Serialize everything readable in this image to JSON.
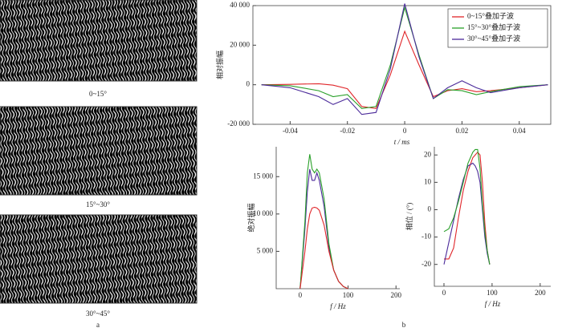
{
  "panels": [
    {
      "label": "0~15°"
    },
    {
      "label": "15°~30°"
    },
    {
      "label": "30°~45°"
    }
  ],
  "figure_labels": [
    "a",
    "b"
  ],
  "chart_data": [
    {
      "type": "line",
      "xlabel": "t / ms",
      "ylabel": "相对振幅",
      "x": [
        -0.05,
        -0.04,
        -0.03,
        -0.025,
        -0.02,
        -0.015,
        -0.01,
        -0.005,
        0,
        0.005,
        0.01,
        0.015,
        0.02,
        0.025,
        0.03,
        0.04,
        0.05
      ],
      "series": [
        {
          "name": "0~15°叠加子波",
          "color": "#e0262a",
          "values": [
            0,
            200,
            500,
            -200,
            -2000,
            -11000,
            -12000,
            5000,
            27000,
            10000,
            -6000,
            -3000,
            -2000,
            -3500,
            -3000,
            -1500,
            0
          ]
        },
        {
          "name": "15°~30°叠加子波",
          "color": "#2aa02a",
          "values": [
            0,
            -500,
            -3000,
            -6000,
            -5000,
            -12000,
            -11000,
            10000,
            39000,
            15000,
            -7000,
            -2500,
            -3000,
            -5000,
            -3500,
            -1000,
            0
          ]
        },
        {
          "name": "30°~45°叠加子波",
          "color": "#4b2a9a",
          "values": [
            0,
            -1500,
            -6000,
            -10000,
            -7000,
            -15000,
            -14000,
            8000,
            41000,
            14000,
            -7000,
            -1500,
            2000,
            -1500,
            -4000,
            -1500,
            0
          ]
        }
      ],
      "xlim": [
        -0.053,
        0.051
      ],
      "ylim": [
        -20000,
        40000
      ],
      "xticks": [
        -0.04,
        -0.02,
        0,
        0.02,
        0.04
      ],
      "yticks": [
        {
          "value": -20000,
          "label": "-20 000"
        },
        0,
        {
          "value": 20000,
          "label": "20 000"
        },
        {
          "value": 40000,
          "label": "40 000"
        }
      ],
      "legend": "upper right"
    },
    {
      "type": "line",
      "xlabel": "f / Hz",
      "ylabel": "绝对振幅",
      "x": [
        0,
        10,
        15,
        20,
        25,
        30,
        35,
        40,
        50,
        60,
        70,
        80,
        90,
        100
      ],
      "series": [
        {
          "color": "#4b2a9a",
          "values": [
            0,
            8000,
            13000,
            16000,
            14500,
            14500,
            15500,
            14500,
            11000,
            5500,
            2500,
            1000,
            300,
            0
          ]
        },
        {
          "color": "#2aa02a",
          "values": [
            0,
            9000,
            15500,
            18000,
            16000,
            15500,
            16000,
            15500,
            12000,
            6000,
            2500,
            1000,
            300,
            0
          ]
        },
        {
          "color": "#e0262a",
          "values": [
            0,
            5000,
            8000,
            10000,
            10800,
            10900,
            10800,
            10500,
            8500,
            5000,
            2500,
            1000,
            300,
            0
          ]
        }
      ],
      "xlim": [
        -50,
        208
      ],
      "ylim": [
        0,
        19000
      ],
      "xticks": [
        0,
        100,
        200
      ],
      "yticks": [
        {
          "value": 5000,
          "label": "5 000"
        },
        {
          "value": 10000,
          "label": "10 000"
        },
        {
          "value": 15000,
          "label": "15 000"
        }
      ]
    },
    {
      "type": "line",
      "xlabel": "f / Hz",
      "ylabel": "相位 / (°)",
      "x": [
        0,
        10,
        20,
        30,
        40,
        50,
        60,
        65,
        70,
        75,
        80,
        85,
        90,
        95
      ],
      "series": [
        {
          "color": "#e0262a",
          "values": [
            -18,
            -18,
            -14,
            -3,
            7,
            14,
            19,
            20,
            21,
            20,
            10,
            -5,
            -15,
            -20
          ]
        },
        {
          "color": "#4b2a9a",
          "values": [
            -20,
            -12,
            -4,
            4,
            11,
            16,
            17,
            16,
            14,
            10,
            0,
            -10,
            -16,
            -20
          ]
        },
        {
          "color": "#2aa02a",
          "values": [
            -8,
            -7,
            -3,
            3,
            10,
            17,
            21,
            22,
            22,
            15,
            2,
            -8,
            -15,
            -20
          ]
        }
      ],
      "xlim": [
        -20,
        222
      ],
      "ylim": [
        -28,
        23
      ],
      "xticks": [
        0,
        100,
        200
      ],
      "yticks": [
        -20,
        -10,
        0,
        10,
        20
      ]
    }
  ]
}
